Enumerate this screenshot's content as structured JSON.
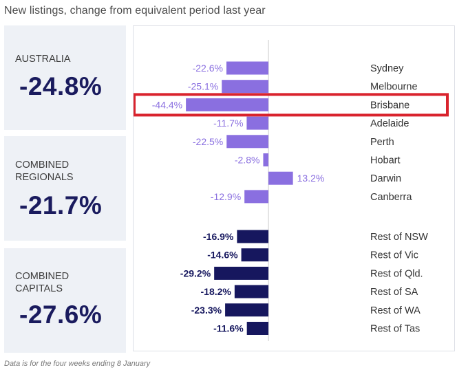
{
  "title": "New listings, change from equivalent period last year",
  "summary": [
    {
      "label": "AUSTRALIA",
      "value": "-24.8%"
    },
    {
      "label": "COMBINED\nREGIONALS",
      "value": "-21.7%"
    },
    {
      "label": "COMBINED\nCAPITALS",
      "value": "-27.6%"
    }
  ],
  "footnote": "Data is for the four weeks ending 8 January",
  "colors": {
    "capitals": "#8a6fe0",
    "regionals": "#16175e",
    "highlight": "#d9232d",
    "panel": "#eef1f6"
  },
  "chart_data": {
    "type": "bar",
    "orientation": "horizontal",
    "highlight": "Brisbane",
    "series": [
      {
        "group": "capitals",
        "categories": [
          "Sydney",
          "Melbourne",
          "Brisbane",
          "Adelaide",
          "Perth",
          "Hobart",
          "Darwin",
          "Canberra"
        ],
        "values": [
          -22.6,
          -25.1,
          -44.4,
          -11.7,
          -22.5,
          -2.8,
          13.2,
          -12.9
        ],
        "labels": [
          "-22.6%",
          "-25.1%",
          "-44.4%",
          "-11.7%",
          "-22.5%",
          "-2.8%",
          "13.2%",
          "-12.9%"
        ]
      },
      {
        "group": "regionals",
        "categories": [
          "Rest of NSW",
          "Rest of Vic",
          "Rest of Qld.",
          "Rest of SA",
          "Rest of WA",
          "Rest of Tas"
        ],
        "values": [
          -16.9,
          -14.6,
          -29.2,
          -18.2,
          -23.3,
          -11.6
        ],
        "labels": [
          "-16.9%",
          "-14.6%",
          "-29.2%",
          "-18.2%",
          "-23.3%",
          "-11.6%"
        ]
      }
    ]
  }
}
